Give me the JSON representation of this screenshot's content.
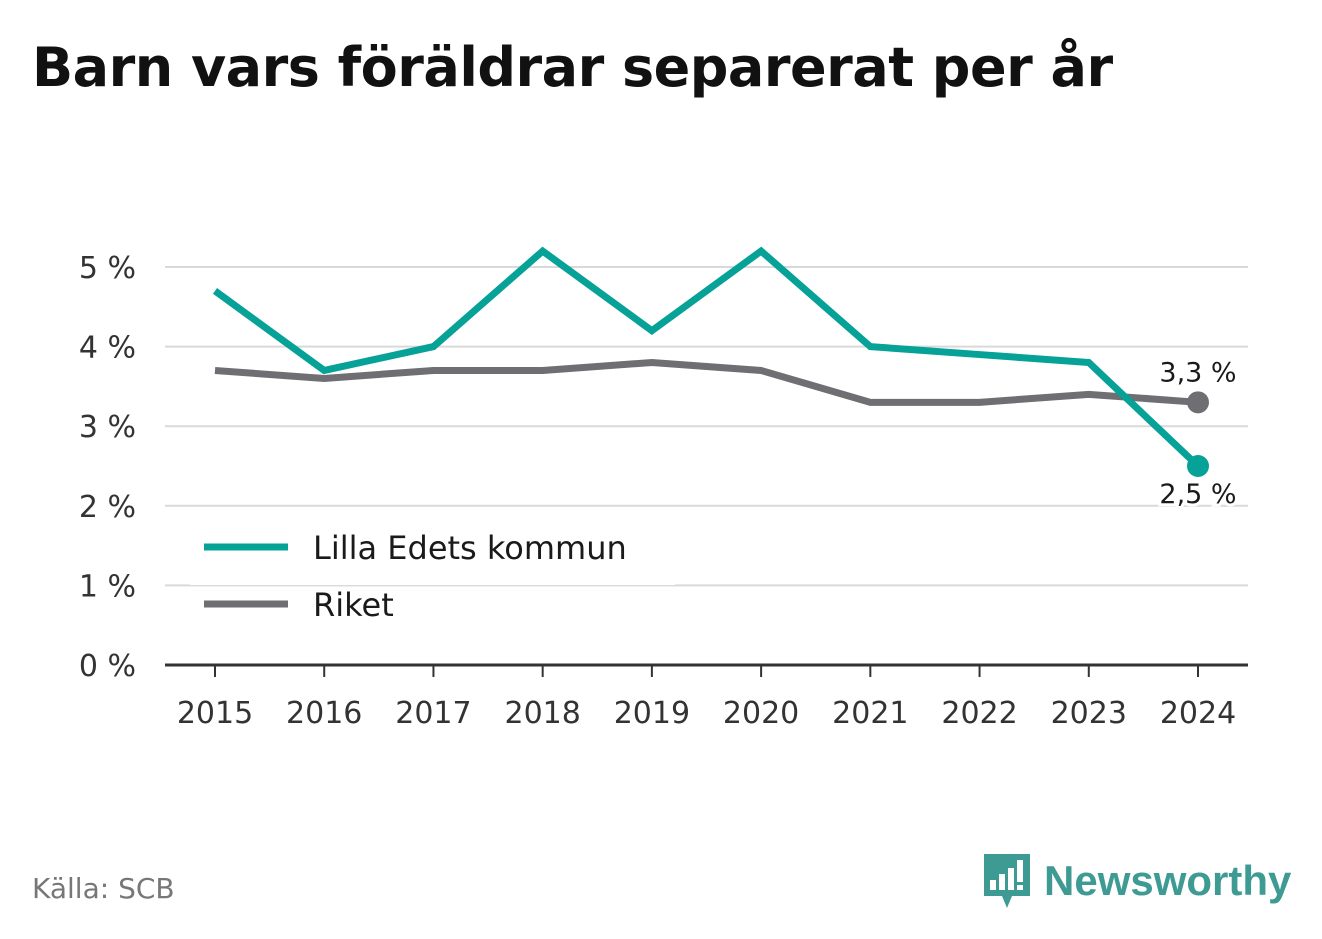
{
  "title": "Barn vars föräldrar separerat per år",
  "source": "Källa: SCB",
  "brand": {
    "name": "Newsworthy",
    "icon": "newsworthy-logo-icon",
    "color": "#3e9b94"
  },
  "chart_data": {
    "type": "line",
    "x": [
      "2015",
      "2016",
      "2017",
      "2018",
      "2019",
      "2020",
      "2021",
      "2022",
      "2023",
      "2024"
    ],
    "ylim": [
      0,
      5
    ],
    "yticks": [
      {
        "value": 0,
        "label": "0 %"
      },
      {
        "value": 1,
        "label": "1 %"
      },
      {
        "value": 2,
        "label": "2 %"
      },
      {
        "value": 3,
        "label": "3 %"
      },
      {
        "value": 4,
        "label": "4 %"
      },
      {
        "value": 5,
        "label": "5 %"
      }
    ],
    "grid": true,
    "legend": "bottom-left",
    "series": [
      {
        "name": "Lilla Edets kommun",
        "color": "#06a197",
        "values": [
          4.7,
          3.7,
          4.0,
          5.2,
          4.2,
          5.2,
          4.0,
          3.9,
          3.8,
          2.5
        ],
        "end_label": "2,5 %"
      },
      {
        "name": "Riket",
        "color": "#6e6e73",
        "values": [
          3.7,
          3.6,
          3.7,
          3.7,
          3.8,
          3.7,
          3.3,
          3.3,
          3.4,
          3.3
        ],
        "end_label": "3,3 %"
      }
    ]
  }
}
